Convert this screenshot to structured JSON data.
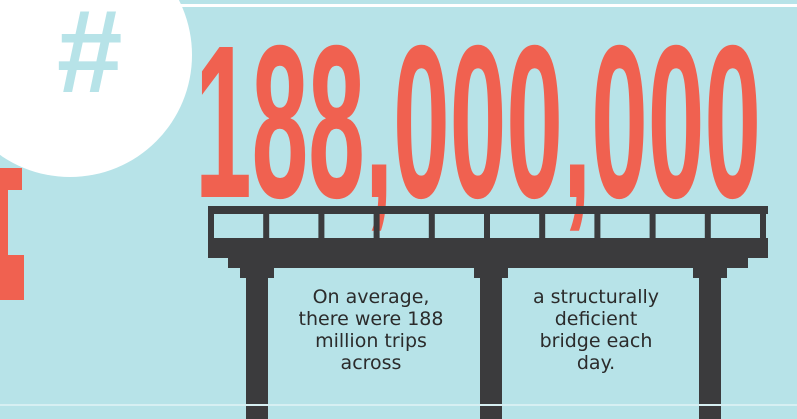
{
  "symbol": "#",
  "headline": "188,000,000",
  "caption_left": [
    "On average,",
    "there were 188",
    "million trips",
    "across"
  ],
  "caption_right": [
    "a structurally",
    "deficient",
    "bridge each",
    "day."
  ]
}
